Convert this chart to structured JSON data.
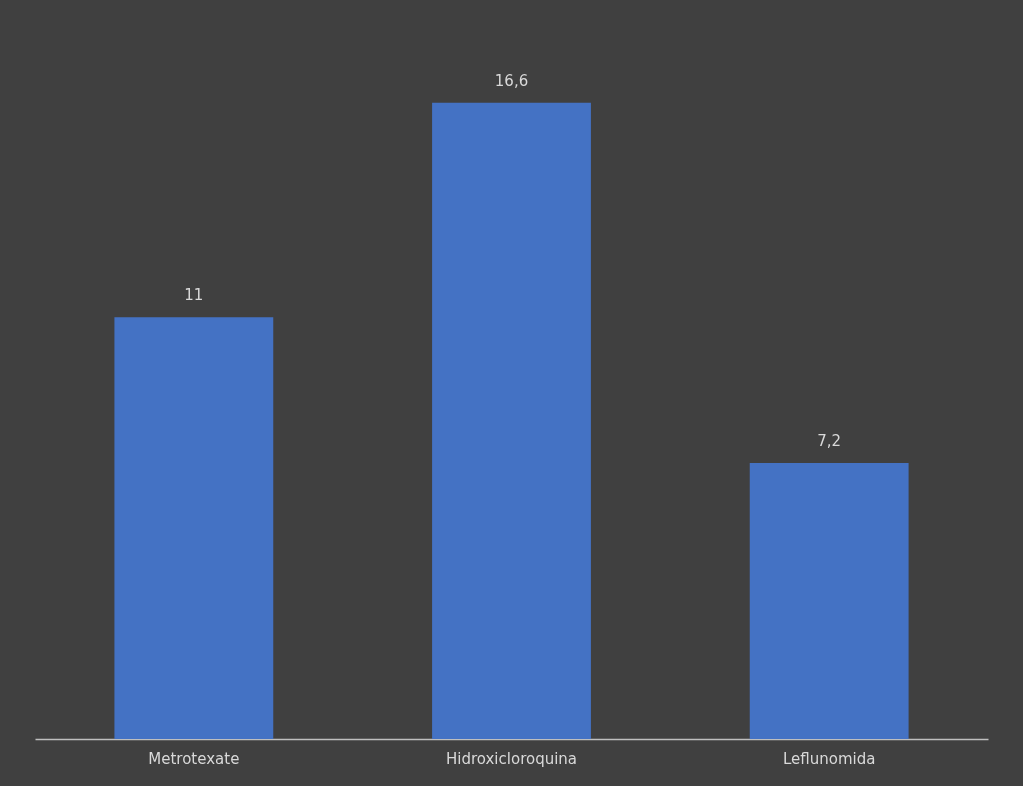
{
  "chart_data": {
    "type": "bar",
    "categories": [
      "Metrotexate",
      "Hidroxicloroquina",
      "Leflunomida"
    ],
    "values": [
      11,
      16.6,
      7.2
    ],
    "value_labels": [
      "11",
      "16,6",
      "7,2"
    ],
    "color": "#4472c4"
  }
}
